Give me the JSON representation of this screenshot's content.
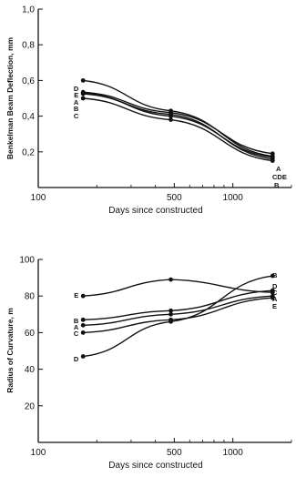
{
  "chart_data": [
    {
      "type": "line",
      "title": "",
      "xlabel": "Days since constructed",
      "ylabel": "Benkelman Beam Deflection, mm",
      "xscale": "log",
      "xlim": [
        100,
        2000
      ],
      "ylim": [
        0,
        1.0
      ],
      "x_ticks": [
        100,
        500,
        1000
      ],
      "x_tick_labels": [
        "100",
        "500",
        "1000"
      ],
      "y_ticks": [
        0.2,
        0.4,
        0.6,
        0.8,
        1.0
      ],
      "y_tick_labels": [
        "0,2",
        "0,4",
        "0,6",
        "0,8",
        "1,0"
      ],
      "x": [
        170,
        480,
        1600
      ],
      "series": [
        {
          "name": "A",
          "values": [
            0.535,
            0.42,
            0.19
          ]
        },
        {
          "name": "B",
          "values": [
            0.525,
            0.41,
            0.16
          ]
        },
        {
          "name": "C",
          "values": [
            0.5,
            0.38,
            0.15
          ]
        },
        {
          "name": "D",
          "values": [
            0.6,
            0.43,
            0.175
          ]
        },
        {
          "name": "E",
          "values": [
            0.53,
            0.4,
            0.17
          ]
        }
      ],
      "point_labels": [
        "D",
        "E",
        "A",
        "B",
        "C"
      ],
      "end_labels": [
        "A",
        "CDE",
        "B"
      ]
    },
    {
      "type": "line",
      "title": "",
      "xlabel": "Days since constructed",
      "ylabel": "Radius of Curvature, m",
      "xscale": "log",
      "xlim": [
        100,
        2000
      ],
      "ylim": [
        0,
        100
      ],
      "x_ticks": [
        100,
        500,
        1000
      ],
      "x_tick_labels": [
        "100",
        "500",
        "1000"
      ],
      "y_ticks": [
        20,
        40,
        60,
        80,
        100
      ],
      "y_tick_labels": [
        "20",
        "40",
        "60",
        "80",
        "100"
      ],
      "x": [
        170,
        480,
        1600
      ],
      "series": [
        {
          "name": "A",
          "values": [
            64,
            70,
            80
          ]
        },
        {
          "name": "B",
          "values": [
            67,
            72,
            83
          ]
        },
        {
          "name": "C",
          "values": [
            60,
            67,
            79
          ]
        },
        {
          "name": "D",
          "values": [
            47,
            66,
            91
          ]
        },
        {
          "name": "E",
          "values": [
            80,
            89,
            82
          ]
        }
      ],
      "point_labels": [
        "E",
        "B",
        "A",
        "C",
        "D"
      ],
      "end_labels": [
        "B",
        "D",
        "C",
        "A",
        "E"
      ]
    }
  ]
}
